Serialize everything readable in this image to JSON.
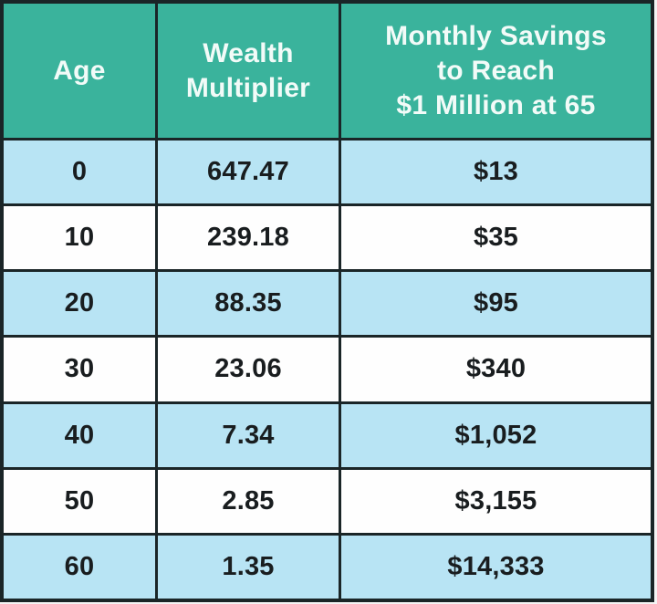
{
  "chart_data": {
    "type": "table",
    "title": "",
    "columns": [
      "Age",
      "Wealth Multiplier",
      "Monthly Savings to Reach $1 Million at 65"
    ],
    "rows": [
      [
        "0",
        "647.47",
        "$13"
      ],
      [
        "10",
        "239.18",
        "$35"
      ],
      [
        "20",
        "88.35",
        "$95"
      ],
      [
        "30",
        "23.06",
        "$340"
      ],
      [
        "40",
        "7.34",
        "$1,052"
      ],
      [
        "50",
        "2.85",
        "$3,155"
      ],
      [
        "60",
        "1.35",
        "$14,333"
      ]
    ]
  },
  "header": {
    "age_lines": [
      "Age"
    ],
    "multiplier_lines": [
      "Wealth",
      "Multiplier"
    ],
    "savings_lines": [
      "Monthly Savings",
      "to Reach",
      "$1 Million at 65"
    ]
  },
  "colors": {
    "header_bg": "#3ab39c",
    "header_text": "#f2fbf8",
    "row_alt_bg": "#b8e4f4",
    "row_plain_bg": "#fefefe",
    "border": "#1a2527",
    "cell_text": "#191d1f"
  }
}
